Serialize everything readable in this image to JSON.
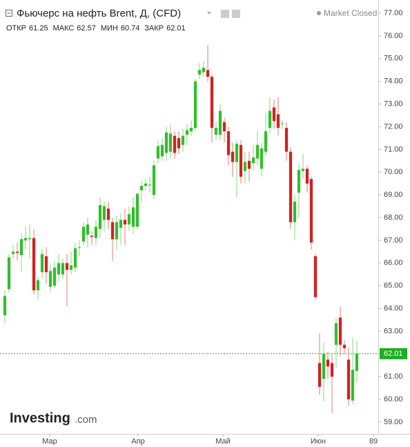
{
  "chart_data": {
    "type": "candlestick",
    "title": "Фьючерс на нефть Brent, Д, (CFD)",
    "status": "Market Closed",
    "ohlc_labels": [
      "ОТКР",
      "МАКС",
      "МИН",
      "ЗАКР"
    ],
    "brand_name": "Investing",
    "brand_suffix": ".com",
    "up_color": "#2fbf2a",
    "down_color": "#d81e1e",
    "last_price_color": "#1fae1f",
    "open": [
      63.7,
      64.85,
      66.4,
      66.5,
      66.35,
      67.0,
      67.05,
      67.1,
      64.8,
      65.6,
      66.3,
      64.95,
      65.0,
      65.5,
      65.5,
      66.0,
      65.7,
      65.8,
      66.7,
      66.95,
      67.25,
      67.2,
      67.1,
      67.5,
      67.9,
      68.4,
      67.8,
      67.05,
      67.55,
      67.9,
      67.7,
      67.6,
      67.6,
      69.2,
      69.4,
      69.45,
      69.0,
      70.6,
      70.7,
      70.85,
      70.9,
      71.6,
      71.5,
      71.2,
      71.65,
      71.8,
      71.95,
      74.3,
      74.4,
      74.5,
      74.2,
      71.65,
      71.65,
      72.2,
      71.8,
      70.9,
      70.45,
      71.2,
      70.05,
      70.5,
      70.4,
      70.6,
      70.15,
      70.9,
      71.95,
      72.85,
      72.55,
      72.15,
      71.95,
      70.9,
      67.8,
      69.1,
      70.05,
      70.15,
      69.7,
      66.3,
      61.6,
      60.9,
      61.75,
      61.6,
      62.4,
      63.6,
      62.4,
      61.75,
      59.95,
      61.25
    ],
    "high": [
      64.8,
      66.4,
      66.8,
      66.9,
      67.3,
      67.6,
      67.7,
      67.5,
      65.4,
      66.6,
      66.7,
      66.0,
      66.1,
      66.4,
      66.2,
      66.4,
      66.5,
      66.9,
      67.0,
      67.8,
      68.0,
      67.4,
      67.9,
      68.9,
      68.7,
      68.7,
      68.0,
      68.1,
      68.2,
      68.4,
      68.5,
      68.9,
      69.1,
      69.6,
      69.7,
      69.8,
      70.5,
      71.4,
      71.5,
      72.0,
      72.1,
      71.8,
      71.8,
      71.9,
      72.1,
      72.3,
      74.1,
      74.8,
      74.9,
      75.6,
      74.3,
      72.2,
      73.0,
      72.4,
      72.0,
      71.3,
      71.4,
      71.4,
      70.9,
      70.9,
      71.2,
      71.8,
      71.3,
      72.6,
      73.3,
      73.2,
      73.3,
      72.3,
      72.2,
      71.1,
      69.0,
      70.4,
      70.8,
      70.3,
      69.8,
      66.4,
      62.9,
      62.5,
      62.1,
      62.0,
      63.6,
      64.1,
      62.6,
      62.3,
      62.7,
      62.57
    ],
    "low": [
      63.35,
      64.7,
      66.2,
      66.1,
      65.6,
      66.6,
      66.2,
      64.6,
      64.4,
      65.3,
      65.1,
      64.7,
      64.9,
      65.2,
      65.3,
      64.1,
      65.5,
      65.6,
      66.3,
      66.8,
      66.7,
      66.8,
      66.8,
      67.1,
      67.4,
      67.5,
      66.1,
      66.6,
      66.8,
      66.8,
      67.4,
      67.3,
      67.5,
      68.7,
      69.2,
      69.1,
      68.8,
      70.4,
      70.5,
      70.5,
      70.6,
      70.6,
      70.8,
      70.9,
      71.2,
      71.6,
      71.8,
      74.1,
      74.2,
      74.0,
      71.3,
      71.4,
      71.4,
      71.3,
      70.3,
      69.8,
      68.9,
      69.5,
      69.5,
      69.6,
      70.1,
      70.3,
      69.8,
      70.7,
      71.7,
      71.9,
      71.6,
      71.9,
      70.5,
      67.5,
      67.0,
      68.0,
      69.7,
      69.1,
      66.6,
      64.4,
      60.2,
      59.9,
      60.9,
      59.4,
      61.4,
      61.9,
      62.0,
      59.7,
      59.8,
      60.74
    ],
    "close": [
      64.55,
      66.25,
      66.5,
      66.45,
      67.05,
      67.1,
      67.1,
      64.8,
      65.25,
      66.4,
      65.6,
      65.65,
      65.8,
      66.0,
      66.0,
      65.7,
      65.9,
      66.65,
      66.7,
      67.6,
      67.7,
      67.15,
      67.6,
      68.55,
      68.5,
      67.9,
      67.05,
      67.8,
      67.9,
      67.7,
      68.15,
      68.45,
      69.05,
      69.4,
      69.5,
      69.45,
      70.3,
      71.15,
      71.2,
      71.75,
      71.7,
      70.85,
      71.05,
      71.6,
      71.85,
      71.95,
      74.0,
      74.5,
      74.6,
      74.2,
      71.95,
      71.95,
      72.7,
      71.8,
      70.75,
      70.45,
      71.25,
      69.8,
      70.45,
      70.15,
      70.65,
      71.2,
      71.05,
      71.8,
      72.7,
      72.25,
      71.95,
      72.15,
      70.9,
      67.8,
      68.7,
      70.1,
      70.15,
      69.5,
      66.9,
      64.5,
      60.55,
      62.0,
      61.45,
      61.0,
      63.35,
      62.4,
      62.25,
      60.0,
      61.3,
      62.01
    ],
    "xlim": [
      -1.17,
      90.17
    ],
    "xticks": [
      {
        "value": 10.83,
        "label": "Мар"
      },
      {
        "value": 32.17,
        "label": "Апр"
      },
      {
        "value": 52.67,
        "label": "Май"
      },
      {
        "value": 75.67,
        "label": "Июн"
      },
      89
    ],
    "ylim": [
      58.48,
      77.58
    ],
    "yticks": [
      {
        "value": 59,
        "label": "59.00"
      },
      {
        "value": 60,
        "label": "60.00"
      },
      {
        "value": 61,
        "label": "61.00"
      },
      {
        "value": 62,
        "label": "62.00"
      },
      {
        "value": 63,
        "label": "63.00"
      },
      {
        "value": 64,
        "label": "64.00"
      },
      {
        "value": 65,
        "label": "65.00"
      },
      {
        "value": 66,
        "label": "66.00"
      },
      {
        "value": 67,
        "label": "67.00"
      },
      {
        "value": 68,
        "label": "68.00"
      },
      {
        "value": 69,
        "label": "69.00"
      },
      {
        "value": 70,
        "label": "70.00"
      },
      {
        "value": 71,
        "label": "71.00"
      },
      {
        "value": 72,
        "label": "72.00"
      },
      {
        "value": 73,
        "label": "73.00"
      },
      {
        "value": 74,
        "label": "74.00"
      },
      {
        "value": 75,
        "label": "75.00"
      },
      {
        "value": 76,
        "label": "76.00"
      },
      {
        "value": 77,
        "label": "77.00"
      }
    ]
  }
}
